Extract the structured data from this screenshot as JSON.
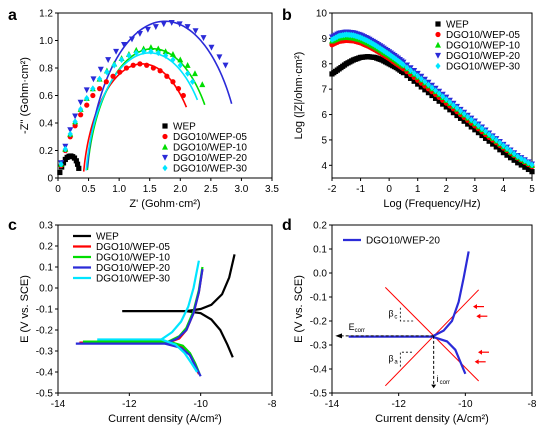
{
  "chart_data": [
    {
      "panel": "a",
      "type": "scatter",
      "xlabel": "Z' (Gohm·cm²)",
      "ylabel": "-Z'' (Gohm·cm²)",
      "xlim": [
        0,
        3.5
      ],
      "ylim": [
        0,
        1.2
      ],
      "xticks": [
        0,
        0.5,
        1.0,
        1.5,
        2.0,
        2.5,
        3.0,
        3.5
      ],
      "xtick_labels": [
        "0",
        "0.5",
        "1.0",
        "1.5",
        "2.0",
        "2.5",
        "3.0",
        "3.5"
      ],
      "yticks": [
        0,
        0.2,
        0.4,
        0.6,
        0.8,
        1.0,
        1.2
      ],
      "ytick_labels": [
        "0",
        "0.2",
        "0.4",
        "0.6",
        "0.8",
        "1.0",
        "1.2"
      ],
      "legend": "bottom-right",
      "series": [
        {
          "name": "WEP",
          "color": "#000000",
          "marker": "square",
          "x": [
            0.03,
            0.06,
            0.09,
            0.12,
            0.15,
            0.18,
            0.21,
            0.24,
            0.27,
            0.3,
            0.32,
            0.34
          ],
          "y": [
            0.04,
            0.08,
            0.11,
            0.135,
            0.15,
            0.158,
            0.16,
            0.155,
            0.145,
            0.125,
            0.1,
            0.07
          ]
        },
        {
          "name": "DGO10/WEP-05",
          "color": "#ff0000",
          "marker": "circle",
          "x": [
            0.05,
            0.12,
            0.2,
            0.28,
            0.37,
            0.47,
            0.57,
            0.68,
            0.79,
            0.9,
            1.01,
            1.12,
            1.23,
            1.34,
            1.45,
            1.56,
            1.67,
            1.78,
            1.88,
            1.97,
            2.05
          ],
          "y": [
            0.09,
            0.2,
            0.3,
            0.38,
            0.46,
            0.53,
            0.6,
            0.65,
            0.7,
            0.74,
            0.77,
            0.8,
            0.82,
            0.83,
            0.82,
            0.8,
            0.78,
            0.74,
            0.7,
            0.65,
            0.6
          ]
        },
        {
          "name": "DGO10/WEP-10",
          "color": "#00dd00",
          "marker": "triangle",
          "x": [
            0.05,
            0.12,
            0.2,
            0.28,
            0.37,
            0.47,
            0.57,
            0.68,
            0.8,
            0.92,
            1.04,
            1.16,
            1.28,
            1.4,
            1.52,
            1.64,
            1.76,
            1.88,
            2.0,
            2.12,
            2.24,
            2.36
          ],
          "y": [
            0.1,
            0.21,
            0.32,
            0.41,
            0.5,
            0.58,
            0.65,
            0.72,
            0.78,
            0.83,
            0.87,
            0.9,
            0.93,
            0.94,
            0.95,
            0.94,
            0.92,
            0.9,
            0.86,
            0.82,
            0.76,
            0.68
          ]
        },
        {
          "name": "DGO10/WEP-20",
          "color": "#2b2bd8",
          "marker": "triangle-down",
          "x": [
            0.05,
            0.12,
            0.2,
            0.28,
            0.37,
            0.47,
            0.58,
            0.7,
            0.82,
            0.95,
            1.08,
            1.21,
            1.34,
            1.47,
            1.6,
            1.73,
            1.86,
            1.99,
            2.12,
            2.25,
            2.38,
            2.51,
            2.64,
            2.74
          ],
          "y": [
            0.11,
            0.23,
            0.35,
            0.45,
            0.55,
            0.64,
            0.72,
            0.79,
            0.86,
            0.92,
            0.97,
            1.01,
            1.05,
            1.08,
            1.1,
            1.12,
            1.13,
            1.12,
            1.1,
            1.07,
            1.02,
            0.95,
            0.88,
            0.82
          ]
        },
        {
          "name": "DGO10/WEP-30",
          "color": "#00e5ff",
          "marker": "diamond",
          "x": [
            0.05,
            0.12,
            0.2,
            0.28,
            0.37,
            0.47,
            0.57,
            0.68,
            0.8,
            0.92,
            1.04,
            1.16,
            1.28,
            1.4,
            1.52,
            1.64,
            1.76,
            1.88,
            2.0,
            2.12,
            2.2
          ],
          "y": [
            0.1,
            0.21,
            0.32,
            0.41,
            0.5,
            0.58,
            0.65,
            0.72,
            0.77,
            0.82,
            0.86,
            0.89,
            0.91,
            0.92,
            0.92,
            0.91,
            0.89,
            0.86,
            0.82,
            0.76,
            0.7
          ]
        }
      ],
      "fits": [
        {
          "color": "#ff0000",
          "center": [
            1.38,
            -0.15
          ],
          "radius": 0.98,
          "x_start": 0.0,
          "x_end": 2.1
        },
        {
          "color": "#00dd00",
          "center": [
            1.55,
            -0.15
          ],
          "radius": 1.09,
          "x_start": 0.0,
          "x_end": 2.4
        },
        {
          "color": "#2b2bd8",
          "center": [
            1.75,
            -0.15
          ],
          "radius": 1.29,
          "x_start": 0.0,
          "x_end": 2.85
        },
        {
          "color": "#00e5ff",
          "center": [
            1.5,
            -0.15
          ],
          "radius": 1.06,
          "x_start": 0.0,
          "x_end": 2.28
        }
      ]
    },
    {
      "panel": "b",
      "type": "scatter",
      "xlabel": "Log (Frequency/Hz)",
      "ylabel": "Log (|Z|/ohm·cm²)",
      "xlim": [
        -2,
        5
      ],
      "ylim": [
        3.5,
        10
      ],
      "xticks": [
        -2,
        -1,
        0,
        1,
        2,
        3,
        4,
        5
      ],
      "xtick_labels": [
        "-2",
        "-1",
        "0",
        "1",
        "2",
        "3",
        "4",
        "5"
      ],
      "yticks": [
        4,
        5,
        6,
        7,
        8,
        9,
        10
      ],
      "ytick_labels": [
        "4",
        "5",
        "6",
        "7",
        "8",
        "9",
        "10"
      ],
      "legend": "top-right",
      "series": [
        {
          "name": "WEP",
          "color": "#000000",
          "marker": "square",
          "x": [
            -2,
            -1.75,
            -1.5,
            -1.25,
            -1.0,
            -0.75,
            -0.5,
            -0.25,
            0,
            0.25,
            0.5,
            1.0,
            1.5,
            2.0,
            2.5,
            3.0,
            3.5,
            4.0,
            4.5,
            5.0
          ],
          "y": [
            7.6,
            7.8,
            8.0,
            8.15,
            8.25,
            8.28,
            8.25,
            8.15,
            8.0,
            7.85,
            7.65,
            7.2,
            6.75,
            6.3,
            5.85,
            5.4,
            4.95,
            4.5,
            4.1,
            3.75
          ]
        },
        {
          "name": "DGO10/WEP-05",
          "color": "#ff0000",
          "marker": "circle",
          "x": [
            -2,
            -1.75,
            -1.5,
            -1.25,
            -1.0,
            -0.75,
            -0.5,
            -0.25,
            0,
            0.25,
            0.5,
            1.0,
            1.5,
            2.0,
            2.5,
            3.0,
            3.5,
            4.0,
            4.5,
            5.0
          ],
          "y": [
            8.75,
            8.88,
            8.92,
            8.9,
            8.82,
            8.7,
            8.55,
            8.38,
            8.2,
            8.0,
            7.8,
            7.35,
            6.9,
            6.45,
            6.0,
            5.55,
            5.1,
            4.68,
            4.28,
            3.95
          ]
        },
        {
          "name": "DGO10/WEP-10",
          "color": "#00dd00",
          "marker": "triangle",
          "x": [
            -2,
            -1.75,
            -1.5,
            -1.25,
            -1.0,
            -0.75,
            -0.5,
            -0.25,
            0,
            0.25,
            0.5,
            1.0,
            1.5,
            2.0,
            2.5,
            3.0,
            3.5,
            4.0,
            4.5,
            5.0
          ],
          "y": [
            8.9,
            9.02,
            9.05,
            9.02,
            8.95,
            8.82,
            8.67,
            8.5,
            8.32,
            8.12,
            7.92,
            7.48,
            7.02,
            6.56,
            6.1,
            5.64,
            5.18,
            4.74,
            4.32,
            4.0
          ]
        },
        {
          "name": "DGO10/WEP-20",
          "color": "#2b2bd8",
          "marker": "triangle-down",
          "x": [
            -2,
            -1.75,
            -1.5,
            -1.25,
            -1.0,
            -0.75,
            -0.5,
            -0.25,
            0,
            0.25,
            0.5,
            1.0,
            1.5,
            2.0,
            2.5,
            3.0,
            3.5,
            4.0,
            4.5,
            5.0
          ],
          "y": [
            9.05,
            9.2,
            9.25,
            9.22,
            9.13,
            9.0,
            8.84,
            8.66,
            8.47,
            8.27,
            8.06,
            7.62,
            7.15,
            6.68,
            6.2,
            5.74,
            5.27,
            4.82,
            4.38,
            4.05
          ]
        },
        {
          "name": "DGO10/WEP-30",
          "color": "#00e5ff",
          "marker": "diamond",
          "x": [
            -2,
            -1.75,
            -1.5,
            -1.25,
            -1.0,
            -0.75,
            -0.5,
            -0.25,
            0,
            0.25,
            0.5,
            1.0,
            1.5,
            2.0,
            2.5,
            3.0,
            3.5,
            4.0,
            4.5,
            5.0
          ],
          "y": [
            8.95,
            9.1,
            9.15,
            9.12,
            9.03,
            8.9,
            8.74,
            8.56,
            8.37,
            8.17,
            7.96,
            7.52,
            7.06,
            6.6,
            6.14,
            5.68,
            5.22,
            4.78,
            4.35,
            4.02
          ]
        }
      ]
    },
    {
      "panel": "c",
      "type": "line",
      "xlabel": "Current density (A/cm²)",
      "ylabel": "E (V vs. SCE)",
      "xlim": [
        -14,
        -8
      ],
      "ylim": [
        -0.5,
        0.3
      ],
      "xticks": [
        -14,
        -12,
        -10,
        -8
      ],
      "xtick_labels": [
        "-14",
        "-12",
        "-10",
        "-8"
      ],
      "yticks": [
        -0.5,
        -0.4,
        -0.3,
        -0.2,
        -0.1,
        0.0,
        0.1,
        0.2,
        0.3
      ],
      "ytick_labels": [
        "-0.5",
        "-0.4",
        "-0.3",
        "-0.2",
        "-0.1",
        "0.0",
        "0.1",
        "0.2",
        "0.3"
      ],
      "legend": "top-left",
      "series": [
        {
          "name": "WEP",
          "color": "#000000",
          "ecorr": -0.11,
          "x_start": -12.2,
          "x_corr": -10.4,
          "anodic": [
            [
              -10.4,
              -0.11
            ],
            [
              -10.0,
              -0.1
            ],
            [
              -9.7,
              -0.08
            ],
            [
              -9.4,
              -0.03
            ],
            [
              -9.2,
              0.05
            ],
            [
              -9.05,
              0.16
            ]
          ],
          "cathodic": [
            [
              -10.4,
              -0.11
            ],
            [
              -10.0,
              -0.12
            ],
            [
              -9.7,
              -0.15
            ],
            [
              -9.45,
              -0.2
            ],
            [
              -9.25,
              -0.27
            ],
            [
              -9.1,
              -0.33
            ]
          ]
        },
        {
          "name": "DGO10/WEP-05",
          "color": "#ff0000",
          "ecorr": -0.26,
          "x_start": -13.4,
          "x_corr": -10.9,
          "anodic": [
            [
              -10.9,
              -0.26
            ],
            [
              -10.6,
              -0.24
            ],
            [
              -10.4,
              -0.2
            ],
            [
              -10.2,
              -0.12
            ],
            [
              -10.05,
              -0.02
            ],
            [
              -9.95,
              0.09
            ]
          ],
          "cathodic": [
            [
              -10.9,
              -0.26
            ],
            [
              -10.5,
              -0.28
            ],
            [
              -10.3,
              -0.32
            ],
            [
              -10.15,
              -0.37
            ],
            [
              -10.05,
              -0.41
            ]
          ]
        },
        {
          "name": "DGO10/WEP-10",
          "color": "#00dd00",
          "ecorr": -0.255,
          "x_start": -13.3,
          "x_corr": -10.9,
          "anodic": [
            [
              -10.9,
              -0.255
            ],
            [
              -10.6,
              -0.23
            ],
            [
              -10.4,
              -0.19
            ],
            [
              -10.2,
              -0.11
            ],
            [
              -10.05,
              -0.01
            ],
            [
              -9.95,
              0.1
            ]
          ],
          "cathodic": [
            [
              -10.9,
              -0.255
            ],
            [
              -10.5,
              -0.275
            ],
            [
              -10.3,
              -0.31
            ],
            [
              -10.15,
              -0.36
            ],
            [
              -10.03,
              -0.41
            ]
          ]
        },
        {
          "name": "DGO10/WEP-20",
          "color": "#2b2bd8",
          "ecorr": -0.265,
          "x_start": -13.5,
          "x_corr": -11.0,
          "anodic": [
            [
              -11.0,
              -0.265
            ],
            [
              -10.65,
              -0.24
            ],
            [
              -10.4,
              -0.2
            ],
            [
              -10.2,
              -0.12
            ],
            [
              -10.05,
              -0.02
            ],
            [
              -9.95,
              0.09
            ]
          ],
          "cathodic": [
            [
              -11.0,
              -0.265
            ],
            [
              -10.55,
              -0.285
            ],
            [
              -10.3,
              -0.32
            ],
            [
              -10.15,
              -0.37
            ],
            [
              -10.0,
              -0.42
            ]
          ]
        },
        {
          "name": "DGO10/WEP-30",
          "color": "#00e5ff",
          "ecorr": -0.245,
          "x_start": -12.9,
          "x_corr": -11.1,
          "anodic": [
            [
              -11.1,
              -0.245
            ],
            [
              -10.8,
              -0.21
            ],
            [
              -10.55,
              -0.16
            ],
            [
              -10.35,
              -0.09
            ],
            [
              -10.2,
              0.0
            ],
            [
              -10.05,
              0.13
            ]
          ],
          "cathodic": [
            [
              -11.1,
              -0.245
            ],
            [
              -10.7,
              -0.27
            ],
            [
              -10.45,
              -0.31
            ],
            [
              -10.25,
              -0.36
            ],
            [
              -10.1,
              -0.4
            ]
          ]
        }
      ]
    },
    {
      "panel": "d",
      "type": "line",
      "xlabel": "Current density (A/cm²)",
      "ylabel": "E (V vs. SCE)",
      "xlim": [
        -14,
        -8
      ],
      "ylim": [
        -0.5,
        0.2
      ],
      "xticks": [
        -14,
        -12,
        -10,
        -8
      ],
      "xtick_labels": [
        "-14",
        "-12",
        "-10",
        "-8"
      ],
      "yticks": [
        -0.5,
        -0.4,
        -0.3,
        -0.2,
        -0.1,
        0.0,
        0.1,
        0.2
      ],
      "ytick_labels": [
        "-0.5",
        "-0.4",
        "-0.3",
        "-0.2",
        "-0.1",
        "0.0",
        "0.1",
        "0.2"
      ],
      "legend": "top-left",
      "series": [
        {
          "name": "DGO10/WEP-20",
          "color": "#2b2bd8",
          "ecorr": -0.265,
          "x_start": -13.5,
          "x_corr": -11.0,
          "anodic": [
            [
              -11.0,
              -0.265
            ],
            [
              -10.65,
              -0.24
            ],
            [
              -10.4,
              -0.2
            ],
            [
              -10.2,
              -0.12
            ],
            [
              -10.05,
              -0.02
            ],
            [
              -9.9,
              0.09
            ]
          ],
          "cathodic": [
            [
              -11.0,
              -0.265
            ],
            [
              -10.55,
              -0.285
            ],
            [
              -10.3,
              -0.32
            ],
            [
              -10.15,
              -0.37
            ],
            [
              -10.0,
              -0.42
            ]
          ]
        }
      ],
      "tafel_lines": [
        {
          "color": "#ff0000",
          "from": [
            -12.4,
            -0.06
          ],
          "to": [
            -9.6,
            -0.45
          ]
        },
        {
          "color": "#ff0000",
          "from": [
            -12.4,
            -0.47
          ],
          "to": [
            -9.6,
            -0.07
          ]
        }
      ],
      "ecorr_level": -0.262,
      "icorr_x": -10.95,
      "labels": {
        "ecorr": "E",
        "ecorr_sub": "corr",
        "icorr": "i",
        "icorr_sub": "corr",
        "beta_c": "β",
        "beta_c_sub": "c",
        "beta_a": "β",
        "beta_a_sub": "a"
      },
      "tafel_arrows": [
        [
          -10.1,
          -0.14
        ],
        [
          -10.0,
          -0.18
        ],
        [
          -9.95,
          -0.33
        ],
        [
          -10.05,
          -0.37
        ]
      ]
    }
  ],
  "panels": {
    "a": "a",
    "b": "b",
    "c": "c",
    "d": "d"
  }
}
